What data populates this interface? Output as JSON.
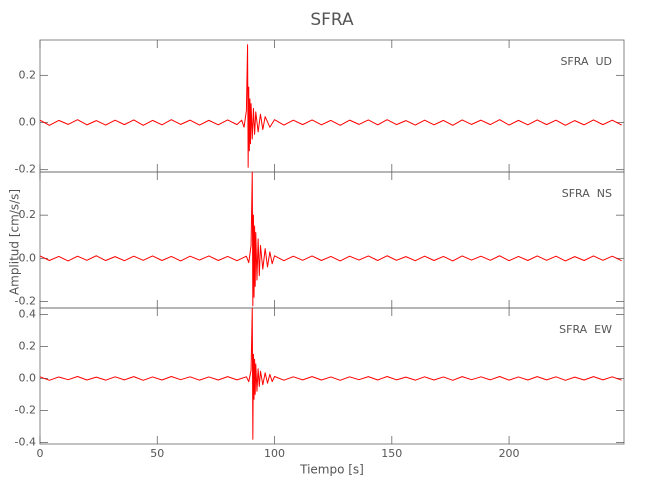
{
  "title": "SFRA",
  "xlabel": "Tiempo [s]",
  "ylabel": "Amplitud [cm/s/s]",
  "chart_data": [
    {
      "type": "line",
      "label": "SFRA  UD",
      "color": "#ff0000",
      "xlim": [
        0,
        249
      ],
      "xticks": [
        0,
        50,
        100,
        150,
        200
      ],
      "ylim": [
        -0.21,
        0.35
      ],
      "yticks": [
        -0.2,
        {
          "value": 0,
          "label": "0.0"
        },
        0.2
      ],
      "x": [
        0,
        4,
        8,
        12,
        16,
        20,
        24,
        28,
        32,
        36,
        40,
        44,
        48,
        52,
        56,
        60,
        64,
        68,
        72,
        76,
        80,
        84,
        86,
        87,
        88,
        88.5,
        88.75,
        89,
        89.25,
        89.5,
        89.75,
        90,
        90.5,
        91,
        91.5,
        92,
        93,
        94,
        95,
        96,
        98,
        100,
        104,
        108,
        112,
        116,
        120,
        124,
        128,
        132,
        136,
        140,
        144,
        148,
        152,
        156,
        160,
        164,
        168,
        172,
        176,
        180,
        184,
        188,
        192,
        196,
        200,
        204,
        208,
        212,
        216,
        220,
        224,
        228,
        232,
        236,
        240,
        244,
        248
      ],
      "values": [
        0.01,
        -0.012,
        0.009,
        -0.008,
        0.012,
        -0.01,
        0.008,
        -0.011,
        0.01,
        -0.009,
        0.011,
        -0.012,
        0.009,
        -0.01,
        0.012,
        -0.008,
        0.01,
        -0.011,
        0.009,
        -0.01,
        0.011,
        -0.009,
        0.01,
        -0.02,
        0.05,
        0.33,
        -0.19,
        0.15,
        -0.12,
        0.1,
        -0.09,
        0.08,
        -0.07,
        0.06,
        -0.05,
        0.045,
        -0.04,
        0.035,
        -0.03,
        0.025,
        -0.02,
        0.012,
        -0.011,
        0.01,
        -0.009,
        0.011,
        -0.01,
        0.009,
        -0.012,
        0.01,
        -0.008,
        0.011,
        -0.01,
        0.012,
        -0.009,
        0.008,
        -0.011,
        0.01,
        -0.01,
        0.009,
        -0.012,
        0.011,
        -0.008,
        0.01,
        -0.009,
        0.012,
        -0.011,
        0.009,
        -0.01,
        0.011,
        -0.009,
        0.01,
        -0.012,
        0.008,
        -0.01,
        0.011,
        -0.009,
        0.01,
        -0.011
      ]
    },
    {
      "type": "line",
      "label": "SFRA  NS",
      "color": "#ff0000",
      "xlim": [
        0,
        249
      ],
      "xticks": [
        0,
        50,
        100,
        150,
        200
      ],
      "ylim": [
        -0.23,
        0.4
      ],
      "yticks": [
        -0.2,
        {
          "value": 0,
          "label": "0.0"
        },
        0.2
      ],
      "x": [
        0,
        4,
        8,
        12,
        16,
        20,
        24,
        28,
        32,
        36,
        40,
        44,
        48,
        52,
        56,
        60,
        64,
        68,
        72,
        76,
        80,
        84,
        88,
        89,
        90,
        90.5,
        90.75,
        91,
        91.25,
        91.5,
        91.75,
        92,
        92.5,
        93,
        93.5,
        94,
        95,
        96,
        97,
        98,
        99,
        100,
        104,
        108,
        112,
        116,
        120,
        124,
        128,
        132,
        136,
        140,
        144,
        148,
        152,
        156,
        160,
        164,
        168,
        172,
        176,
        180,
        184,
        188,
        192,
        196,
        200,
        204,
        208,
        212,
        216,
        220,
        224,
        228,
        232,
        236,
        240,
        244,
        248
      ],
      "values": [
        0.011,
        -0.01,
        0.009,
        -0.012,
        0.01,
        -0.009,
        0.012,
        -0.01,
        0.008,
        -0.011,
        0.01,
        -0.009,
        0.011,
        -0.01,
        0.009,
        -0.012,
        0.01,
        -0.008,
        0.011,
        -0.01,
        0.009,
        -0.011,
        0.01,
        -0.02,
        0.06,
        0.4,
        -0.22,
        0.2,
        -0.18,
        0.15,
        -0.13,
        0.12,
        -0.1,
        0.09,
        -0.08,
        0.06,
        -0.05,
        0.045,
        -0.04,
        0.03,
        -0.025,
        0.012,
        -0.011,
        0.01,
        -0.009,
        0.011,
        -0.01,
        0.009,
        -0.012,
        0.01,
        -0.008,
        0.011,
        -0.01,
        0.012,
        -0.009,
        0.008,
        -0.011,
        0.01,
        -0.01,
        0.009,
        -0.012,
        0.011,
        -0.008,
        0.01,
        -0.009,
        0.012,
        -0.011,
        0.009,
        -0.01,
        0.011,
        -0.009,
        0.01,
        -0.012,
        0.008,
        -0.01,
        0.011,
        -0.009,
        0.01,
        -0.011
      ]
    },
    {
      "type": "line",
      "label": "SFRA  EW",
      "color": "#ff0000",
      "xlim": [
        0,
        249
      ],
      "xticks": [
        0,
        50,
        100,
        150,
        200
      ],
      "ylim": [
        -0.41,
        0.44
      ],
      "yticks": [
        -0.4,
        -0.2,
        {
          "value": 0,
          "label": "0.0"
        },
        0.2,
        0.4
      ],
      "x": [
        0,
        4,
        8,
        12,
        16,
        20,
        24,
        28,
        32,
        36,
        40,
        44,
        48,
        52,
        56,
        60,
        64,
        68,
        72,
        76,
        80,
        84,
        88,
        89,
        90,
        90.5,
        90.75,
        91,
        91.25,
        91.5,
        91.75,
        92,
        92.5,
        93,
        93.5,
        94,
        95,
        96,
        97,
        98,
        99,
        100,
        104,
        108,
        112,
        116,
        120,
        124,
        128,
        132,
        136,
        140,
        144,
        148,
        152,
        156,
        160,
        164,
        168,
        172,
        176,
        180,
        184,
        188,
        192,
        196,
        200,
        204,
        208,
        212,
        216,
        220,
        224,
        228,
        232,
        236,
        240,
        244,
        248
      ],
      "values": [
        0.01,
        -0.012,
        0.009,
        -0.008,
        0.012,
        -0.01,
        0.008,
        -0.011,
        0.01,
        -0.009,
        0.011,
        -0.012,
        0.009,
        -0.01,
        0.012,
        -0.008,
        0.01,
        -0.011,
        0.009,
        -0.01,
        0.011,
        -0.009,
        0.01,
        -0.02,
        0.05,
        0.44,
        -0.38,
        0.15,
        -0.13,
        0.12,
        -0.1,
        0.09,
        -0.08,
        0.06,
        -0.05,
        0.045,
        -0.04,
        0.035,
        -0.03,
        0.025,
        -0.02,
        0.012,
        -0.011,
        0.01,
        -0.009,
        0.011,
        -0.01,
        0.009,
        -0.012,
        0.01,
        -0.008,
        0.011,
        -0.01,
        0.012,
        -0.009,
        0.008,
        -0.011,
        0.01,
        -0.01,
        0.009,
        -0.012,
        0.011,
        -0.008,
        0.01,
        -0.009,
        0.012,
        -0.011,
        0.009,
        -0.01,
        0.011,
        -0.009,
        0.01,
        -0.012,
        0.008,
        -0.01,
        0.011,
        -0.009,
        0.01,
        -0.011
      ]
    }
  ]
}
